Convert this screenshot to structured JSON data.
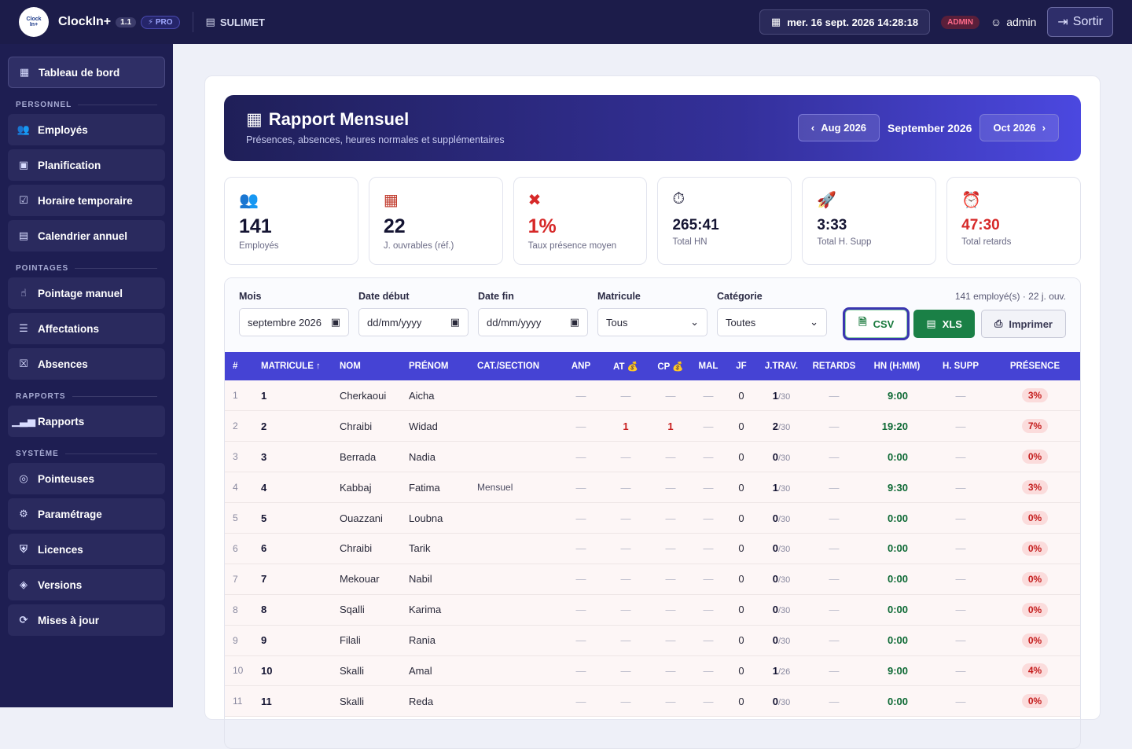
{
  "topbar": {
    "brand": "ClockIn+",
    "version": "1.1",
    "pro": "⚡ PRO",
    "company": "SULIMET",
    "datetime": "mer. 16 sept. 2026  14:28:18",
    "role": "ADMIN",
    "user": "admin",
    "logout": "Sortir"
  },
  "sidebar": {
    "dashboard": "Tableau de bord",
    "sections": {
      "personnel": "PERSONNEL",
      "pointages": "POINTAGES",
      "rapports": "RAPPORTS",
      "systeme": "SYSTÈME"
    },
    "items": {
      "employes": "Employés",
      "planification": "Planification",
      "horaire": "Horaire temporaire",
      "calendrier": "Calendrier annuel",
      "pointage": "Pointage manuel",
      "affectations": "Affectations",
      "absences": "Absences",
      "rapports": "Rapports",
      "pointeuses": "Pointeuses",
      "parametrage": "Paramétrage",
      "licences": "Licences",
      "versions": "Versions",
      "maj": "Mises à jour"
    }
  },
  "hero": {
    "title": "Rapport Mensuel",
    "subtitle": "Présences, absences, heures normales et supplémentaires",
    "prev": "Aug 2026",
    "current": "September 2026",
    "next": "Oct 2026"
  },
  "stats": [
    {
      "value": "141",
      "label": "Employés"
    },
    {
      "value": "22",
      "label": "J. ouvrables (réf.)"
    },
    {
      "value": "1%",
      "label": "Taux présence moyen"
    },
    {
      "value": "265:41",
      "label": "Total HN"
    },
    {
      "value": "3:33",
      "label": "Total H. Supp"
    },
    {
      "value": "47:30",
      "label": "Total retards"
    }
  ],
  "filters": {
    "mois_label": "Mois",
    "mois_value": "septembre 2026",
    "debut_label": "Date début",
    "debut_value": "dd/mm/yyyy",
    "fin_label": "Date fin",
    "fin_value": "dd/mm/yyyy",
    "matricule_label": "Matricule",
    "matricule_value": "Tous",
    "categorie_label": "Catégorie",
    "categorie_value": "Toutes",
    "count": "141 employé(s) · 22 j. ouv.",
    "csv": "CSV",
    "xls": "XLS",
    "print": "Imprimer"
  },
  "table": {
    "headers": [
      "#",
      "MATRICULE ↑",
      "NOM",
      "PRÉNOM",
      "CAT./SECTION",
      "ANP",
      "AT 💰",
      "CP 💰",
      "MAL",
      "JF",
      "J.TRAV.",
      "RETARDS",
      "HN (H:MM)",
      "H. SUPP",
      "PRÉSENCE"
    ],
    "rows": [
      {
        "idx": "1",
        "mat": "1",
        "nom": "Cherkaoui",
        "prenom": "Aicha",
        "cat": "",
        "at": "—",
        "cp": "—",
        "jf": "0",
        "jt": "1",
        "jtot": "/30",
        "hn": "9:00",
        "pres": "3%"
      },
      {
        "idx": "2",
        "mat": "2",
        "nom": "Chraibi",
        "prenom": "Widad",
        "cat": "",
        "at": "1",
        "cp": "1",
        "jf": "0",
        "jt": "2",
        "jtot": "/30",
        "hn": "19:20",
        "pres": "7%"
      },
      {
        "idx": "3",
        "mat": "3",
        "nom": "Berrada",
        "prenom": "Nadia",
        "cat": "",
        "at": "—",
        "cp": "—",
        "jf": "0",
        "jt": "0",
        "jtot": "/30",
        "hn": "0:00",
        "pres": "0%"
      },
      {
        "idx": "4",
        "mat": "4",
        "nom": "Kabbaj",
        "prenom": "Fatima",
        "cat": "Mensuel",
        "at": "—",
        "cp": "—",
        "jf": "0",
        "jt": "1",
        "jtot": "/30",
        "hn": "9:30",
        "pres": "3%"
      },
      {
        "idx": "5",
        "mat": "5",
        "nom": "Ouazzani",
        "prenom": "Loubna",
        "cat": "",
        "at": "—",
        "cp": "—",
        "jf": "0",
        "jt": "0",
        "jtot": "/30",
        "hn": "0:00",
        "pres": "0%"
      },
      {
        "idx": "6",
        "mat": "6",
        "nom": "Chraibi",
        "prenom": "Tarik",
        "cat": "",
        "at": "—",
        "cp": "—",
        "jf": "0",
        "jt": "0",
        "jtot": "/30",
        "hn": "0:00",
        "pres": "0%"
      },
      {
        "idx": "7",
        "mat": "7",
        "nom": "Mekouar",
        "prenom": "Nabil",
        "cat": "",
        "at": "—",
        "cp": "—",
        "jf": "0",
        "jt": "0",
        "jtot": "/30",
        "hn": "0:00",
        "pres": "0%"
      },
      {
        "idx": "8",
        "mat": "8",
        "nom": "Sqalli",
        "prenom": "Karima",
        "cat": "",
        "at": "—",
        "cp": "—",
        "jf": "0",
        "jt": "0",
        "jtot": "/30",
        "hn": "0:00",
        "pres": "0%"
      },
      {
        "idx": "9",
        "mat": "9",
        "nom": "Filali",
        "prenom": "Rania",
        "cat": "",
        "at": "—",
        "cp": "—",
        "jf": "0",
        "jt": "0",
        "jtot": "/30",
        "hn": "0:00",
        "pres": "0%"
      },
      {
        "idx": "10",
        "mat": "10",
        "nom": "Skalli",
        "prenom": "Amal",
        "cat": "",
        "at": "—",
        "cp": "—",
        "jf": "0",
        "jt": "1",
        "jtot": "/26",
        "hn": "9:00",
        "pres": "4%"
      },
      {
        "idx": "11",
        "mat": "11",
        "nom": "Skalli",
        "prenom": "Reda",
        "cat": "",
        "at": "—",
        "cp": "—",
        "jf": "0",
        "jt": "0",
        "jtot": "/30",
        "hn": "0:00",
        "pres": "0%"
      }
    ]
  },
  "dash": "—"
}
